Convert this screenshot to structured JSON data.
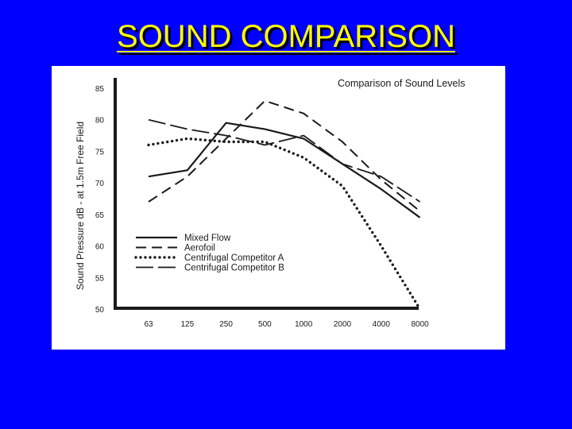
{
  "slide": {
    "title": "SOUND COMPARISON",
    "background_color": "#0000ff",
    "title_color": "#ffff00"
  },
  "chart_data": {
    "type": "line",
    "title": "Comparison of Sound Levels",
    "ylabel": "Sound Pressure dB - at 1.5m Free Field",
    "xlabel": "",
    "categories": [
      "63",
      "125",
      "250",
      "500",
      "1000",
      "2000",
      "4000",
      "8000"
    ],
    "y_ticks": [
      85,
      80,
      75,
      70,
      65,
      60,
      55,
      50
    ],
    "ylim": [
      50,
      85
    ],
    "grid": false,
    "legend_position": "lower-left",
    "series": [
      {
        "name": "Mixed Flow",
        "style": "solid",
        "values": [
          71,
          72,
          79.5,
          78.5,
          77,
          73,
          69,
          64.5
        ]
      },
      {
        "name": "Aerofoil",
        "style": "dashed",
        "values": [
          67,
          71,
          77,
          83,
          81,
          76.5,
          70.5,
          65.5
        ]
      },
      {
        "name": "Centrifugal Competitor A",
        "style": "dotted",
        "values": [
          76,
          77,
          76.5,
          76.5,
          74,
          69.5,
          60,
          50
        ]
      },
      {
        "name": "Centrifugal Competitor B",
        "style": "dash-long",
        "values": [
          80,
          78.5,
          77.5,
          76,
          77.5,
          73,
          71,
          67
        ]
      }
    ]
  }
}
